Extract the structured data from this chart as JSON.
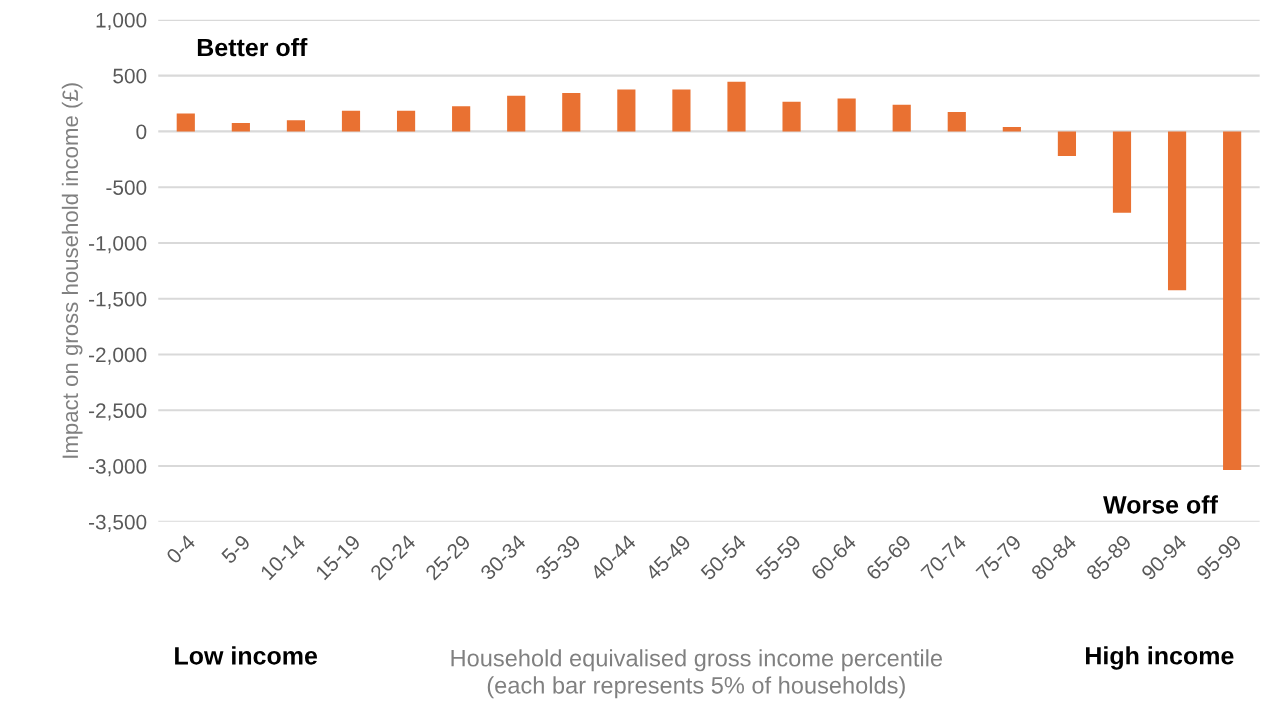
{
  "chart_data": {
    "type": "bar",
    "categories": [
      "0-4",
      "5-9",
      "10-14",
      "15-19",
      "20-24",
      "25-29",
      "30-34",
      "35-39",
      "40-44",
      "45-49",
      "50-54",
      "55-59",
      "60-64",
      "65-69",
      "70-74",
      "75-79",
      "80-84",
      "85-89",
      "90-94",
      "95-99"
    ],
    "values": [
      160,
      75,
      100,
      185,
      185,
      225,
      320,
      345,
      375,
      375,
      445,
      265,
      295,
      240,
      175,
      40,
      -220,
      -730,
      -1425,
      -3035
    ],
    "color": "#e97132",
    "ylabel": "Impact on gross household income (£)",
    "xlabel": "Household equivalised gross income percentile\n(each bar represents 5% of households)",
    "ylim": [
      -3500,
      1000
    ],
    "yticks": [
      {
        "value": -3500,
        "label": "-3,500"
      },
      {
        "value": -3000,
        "label": "-3,000"
      },
      {
        "value": -2500,
        "label": "-2,500"
      },
      {
        "value": -2000,
        "label": "-2,000"
      },
      {
        "value": -1500,
        "label": "-1,500"
      },
      {
        "value": -1000,
        "label": "-1,000"
      },
      {
        "value": -500,
        "label": "-500"
      },
      0,
      500,
      {
        "value": 1000,
        "label": "1,000"
      }
    ],
    "grid": "y",
    "annotations": [
      "Better off",
      "Worse off",
      "Low income",
      "High income"
    ]
  }
}
